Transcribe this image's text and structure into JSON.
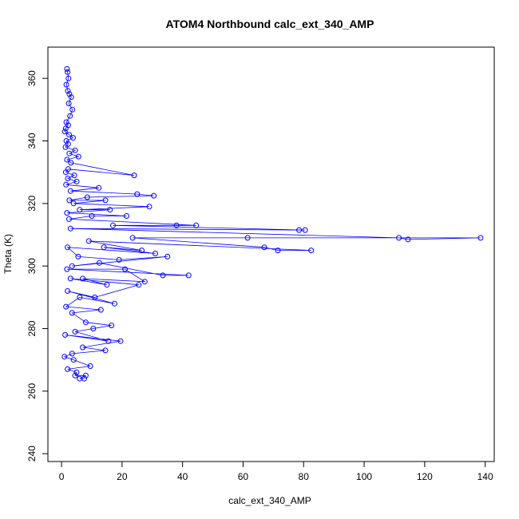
{
  "chart_data": {
    "type": "line",
    "title": "ATOM4 Northbound calc_ext_340_AMP",
    "xlabel": "calc_ext_340_AMP",
    "ylabel": "Theta (K)",
    "xlim": [
      -4.5,
      143
    ],
    "ylim": [
      237.5,
      370
    ],
    "xticks": [
      0,
      20,
      40,
      60,
      80,
      100,
      120,
      140
    ],
    "yticks": [
      240,
      260,
      280,
      300,
      320,
      340,
      360
    ],
    "grid": false,
    "legend": "none",
    "series_color": "#0000FF",
    "marker": "open-circle",
    "series": [
      {
        "points": [
          [
            1.8,
            363
          ],
          [
            2.0,
            362
          ],
          [
            2.3,
            360
          ],
          [
            1.6,
            358
          ],
          [
            2.1,
            356
          ],
          [
            2.6,
            355
          ],
          [
            3.2,
            354
          ],
          [
            2.4,
            352
          ],
          [
            3.6,
            350
          ],
          [
            2.8,
            348
          ],
          [
            1.6,
            346
          ],
          [
            2.2,
            345
          ],
          [
            1.4,
            344
          ],
          [
            1.1,
            343
          ],
          [
            2.5,
            342
          ],
          [
            3.8,
            341
          ],
          [
            1.6,
            340
          ],
          [
            2.2,
            339
          ],
          [
            1.3,
            338
          ],
          [
            4.5,
            337
          ],
          [
            2.6,
            336
          ],
          [
            5.6,
            335
          ],
          [
            1.8,
            334
          ],
          [
            3.1,
            333
          ],
          [
            24.0,
            329
          ],
          [
            2.2,
            331
          ],
          [
            1.4,
            330
          ],
          [
            4.2,
            329
          ],
          [
            2.1,
            328
          ],
          [
            5.0,
            327
          ],
          [
            1.5,
            326
          ],
          [
            12.3,
            325
          ],
          [
            3.0,
            324
          ],
          [
            25.0,
            323
          ],
          [
            30.5,
            322.5
          ],
          [
            8.5,
            322
          ],
          [
            2.6,
            321
          ],
          [
            14.5,
            321
          ],
          [
            4.0,
            320
          ],
          [
            29.0,
            319
          ],
          [
            6.0,
            318
          ],
          [
            16.0,
            318
          ],
          [
            1.8,
            317
          ],
          [
            21.5,
            316
          ],
          [
            10.0,
            316
          ],
          [
            2.5,
            315
          ],
          [
            44.5,
            313
          ],
          [
            38.0,
            313
          ],
          [
            17.0,
            313
          ],
          [
            80.5,
            311.5
          ],
          [
            78.5,
            311.5
          ],
          [
            3.0,
            312
          ],
          [
            111.5,
            309
          ],
          [
            114.5,
            308.5
          ],
          [
            138.5,
            309
          ],
          [
            61.5,
            309
          ],
          [
            23.5,
            309
          ],
          [
            67.0,
            306
          ],
          [
            71.5,
            305
          ],
          [
            82.5,
            305
          ],
          [
            9.0,
            308
          ],
          [
            26.5,
            305
          ],
          [
            14.0,
            306
          ],
          [
            31.0,
            304
          ],
          [
            2.0,
            306
          ],
          [
            5.5,
            303
          ],
          [
            19.0,
            302
          ],
          [
            35.0,
            303
          ],
          [
            3.5,
            300
          ],
          [
            12.5,
            301
          ],
          [
            33.5,
            297
          ],
          [
            42.0,
            297
          ],
          [
            1.8,
            299
          ],
          [
            21.0,
            299
          ],
          [
            27.5,
            295
          ],
          [
            7.0,
            296
          ],
          [
            15.0,
            294
          ],
          [
            3.0,
            296
          ],
          [
            25.5,
            294
          ],
          [
            11.0,
            290
          ],
          [
            2.0,
            292
          ],
          [
            17.5,
            288
          ],
          [
            6.0,
            290
          ],
          [
            1.5,
            287
          ],
          [
            13.0,
            286
          ],
          [
            3.5,
            285
          ],
          [
            8.0,
            282
          ],
          [
            16.5,
            281
          ],
          [
            10.5,
            280
          ],
          [
            4.5,
            279
          ],
          [
            15.5,
            276
          ],
          [
            1.2,
            278
          ],
          [
            19.5,
            276
          ],
          [
            7.0,
            274
          ],
          [
            14.5,
            273
          ],
          [
            3.5,
            272
          ],
          [
            1.0,
            271
          ],
          [
            4.0,
            270
          ],
          [
            9.5,
            268
          ],
          [
            2.0,
            267
          ],
          [
            5.0,
            266
          ],
          [
            4.5,
            265
          ],
          [
            8.0,
            265
          ],
          [
            6.0,
            264
          ],
          [
            7.5,
            264
          ]
        ]
      }
    ]
  }
}
